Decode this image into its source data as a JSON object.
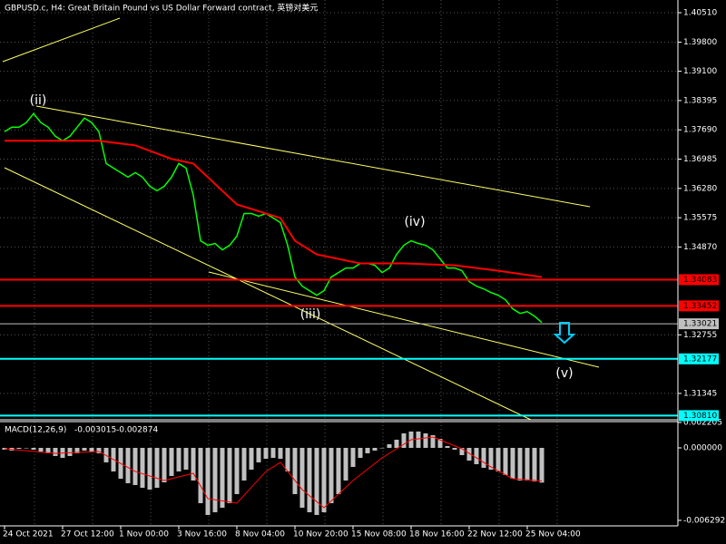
{
  "chart_data": [
    {
      "type": "line",
      "title": "GBPUSD.c, H4:  Great Britain Pound vs US Dollar Forward contract, 英镑对美元",
      "categories": [
        "24 Oct 2021",
        null,
        null,
        null,
        null,
        null,
        null,
        null,
        "27 Oct 12:00",
        null,
        null,
        null,
        null,
        null,
        null,
        null,
        "1 Nov 00:00",
        null,
        null,
        null,
        null,
        null,
        null,
        null,
        "3 Nov 16:00",
        null,
        null,
        null,
        null,
        null,
        null,
        null,
        "8 Nov 04:00",
        null,
        null,
        null,
        null,
        null,
        null,
        null,
        "10 Nov 20:00",
        null,
        null,
        null,
        null,
        null,
        null,
        null,
        "15 Nov 08:00",
        null,
        null,
        null,
        null,
        null,
        null,
        null,
        "18 Nov 16:00",
        null,
        null,
        null,
        null,
        null,
        null,
        null,
        "22 Nov 12:00",
        null,
        null,
        null,
        null,
        null,
        null,
        null,
        "25 Nov 04:00",
        null,
        null
      ],
      "series": [
        {
          "color": "#00ff00",
          "values": [
            1.37645,
            1.37754,
            1.37754,
            1.37864,
            1.38082,
            1.37864,
            1.37754,
            1.37535,
            1.37426,
            1.37535,
            1.37754,
            1.37973,
            1.37864,
            1.37645,
            1.36879,
            1.3677,
            1.36661,
            1.36551,
            1.36661,
            1.36551,
            1.36333,
            1.36223,
            1.36333,
            1.36551,
            1.36879,
            1.3677,
            1.36114,
            1.3502,
            1.34911,
            1.34955,
            1.34802,
            1.34911,
            1.3513,
            1.35677,
            1.35677,
            1.35611,
            1.35677,
            1.35567,
            1.35458,
            1.34911,
            1.34146,
            1.33927,
            1.33818,
            1.33708,
            1.33818,
            1.34146,
            1.34255,
            1.34364,
            1.34364,
            1.34474,
            1.34474,
            1.3443,
            1.34255,
            1.34364,
            1.34692,
            1.34911,
            1.3502,
            1.34955,
            1.34911,
            1.34802,
            1.34583,
            1.34364,
            1.34364,
            1.34299,
            1.34036,
            1.33927,
            1.33861,
            1.33774,
            1.33708,
            1.33599,
            1.3338,
            1.33271,
            1.33315,
            1.33205,
            1.33052
          ]
        },
        {
          "color": "#ff0000",
          "x": [
            0,
            13,
            18,
            23,
            26,
            32,
            38,
            40,
            43,
            49,
            55,
            62,
            68,
            74
          ],
          "values": [
            1.37426,
            1.37426,
            1.37317,
            1.36989,
            1.36879,
            1.35895,
            1.35567,
            1.3502,
            1.34692,
            1.34474,
            1.34474,
            1.3443,
            1.34299,
            1.34146
          ]
        }
      ],
      "ylim": [
        1.3071,
        1.40816
      ],
      "yticks": [
        {
          "value": 1.4051,
          "label": "1.40510"
        },
        {
          "value": 1.398,
          "label": "1.39800"
        },
        {
          "value": 1.391,
          "label": "1.39100"
        },
        {
          "value": 1.38395,
          "label": "1.38395"
        },
        {
          "value": 1.3769,
          "label": "1.37690"
        },
        {
          "value": 1.36985,
          "label": "1.36985"
        },
        {
          "value": 1.3628,
          "label": "1.36280"
        },
        {
          "value": 1.35575,
          "label": "1.35575"
        },
        {
          "value": 1.3487,
          "label": "1.34870"
        },
        {
          "value": 1.32755,
          "label": "1.32755"
        },
        {
          "value": 1.31345,
          "label": "1.31345"
        }
      ],
      "levels": [
        {
          "value": 1.34083,
          "label": "1.34083",
          "color": "#ff0000"
        },
        {
          "value": 1.33452,
          "label": "1.33452",
          "color": "#ff0000"
        },
        {
          "value": 1.33021,
          "label": "1.33021",
          "color": "#c0c0c0"
        },
        {
          "value": 1.32177,
          "label": "1.32177",
          "color": "#00ffff"
        },
        {
          "value": 1.3081,
          "label": "1.30810",
          "color": "#00ffff"
        }
      ],
      "annotations": [
        "(ii)",
        "(iii)",
        "(iv)",
        "(v)"
      ],
      "grid": true
    },
    {
      "type": "bar",
      "title": "MACD(12,26,9)",
      "current": [
        -0.003015,
        -0.002874
      ],
      "series": [
        {
          "color": "#c0c0c0",
          "values": [
            -0.000157,
            -0.000236,
            -7.9e-05,
            0,
            -0.000157,
            -0.000315,
            -0.000472,
            -0.000708,
            -0.000866,
            -0.000708,
            -0.000472,
            -0.000236,
            -0.000315,
            -0.000472,
            -0.001259,
            -0.002046,
            -0.002676,
            -0.003069,
            -0.003227,
            -0.003463,
            -0.00362,
            -0.003463,
            -0.002991,
            -0.00244,
            -0.002046,
            -0.001889,
            -0.002833,
            -0.004801,
            -0.005824,
            -0.005588,
            -0.005194,
            -0.004801,
            -0.004014,
            -0.002833,
            -0.001889,
            -0.001259,
            -0.000944,
            -0.000866,
            -0.000944,
            -0.002046,
            -0.004014,
            -0.005194,
            -0.005588,
            -0.005824,
            -0.005588,
            -0.004801,
            -0.004014,
            -0.002833,
            -0.001653,
            -0.000866,
            -0.000472,
            -0.000236,
            0,
            0.000315,
            0.000708,
            0.001259,
            0.001417,
            0.001417,
            0.001259,
            0.001102,
            0.000787,
            0.000157,
            -0.000157,
            -0.00063,
            -0.001102,
            -0.001417,
            -0.001731,
            -0.001889,
            -0.002046,
            -0.002361,
            -0.002676,
            -0.002833,
            -0.002833,
            -0.002912,
            -0.003015
          ]
        },
        {
          "color": "#ff0000",
          "x": [
            0,
            7,
            13,
            18,
            22,
            26,
            28,
            32,
            36,
            38,
            41,
            44,
            48,
            52,
            56,
            59,
            63,
            67,
            70,
            74
          ],
          "values": [
            -7.9e-05,
            -0.000472,
            -0.000315,
            -0.002046,
            -0.002833,
            -0.002204,
            -0.004407,
            -0.004801,
            -0.002046,
            -0.001259,
            -0.00362,
            -0.005194,
            -0.002833,
            -0.000866,
            0.000708,
            0.000944,
            -7.9e-05,
            -0.001653,
            -0.002676,
            -0.002874
          ]
        }
      ],
      "ylim": [
        -0.00677,
        0.00228
      ],
      "yticks": [
        0.002205,
        {
          "value": 0,
          "label": "0.000000"
        },
        -0.006292
      ]
    }
  ]
}
